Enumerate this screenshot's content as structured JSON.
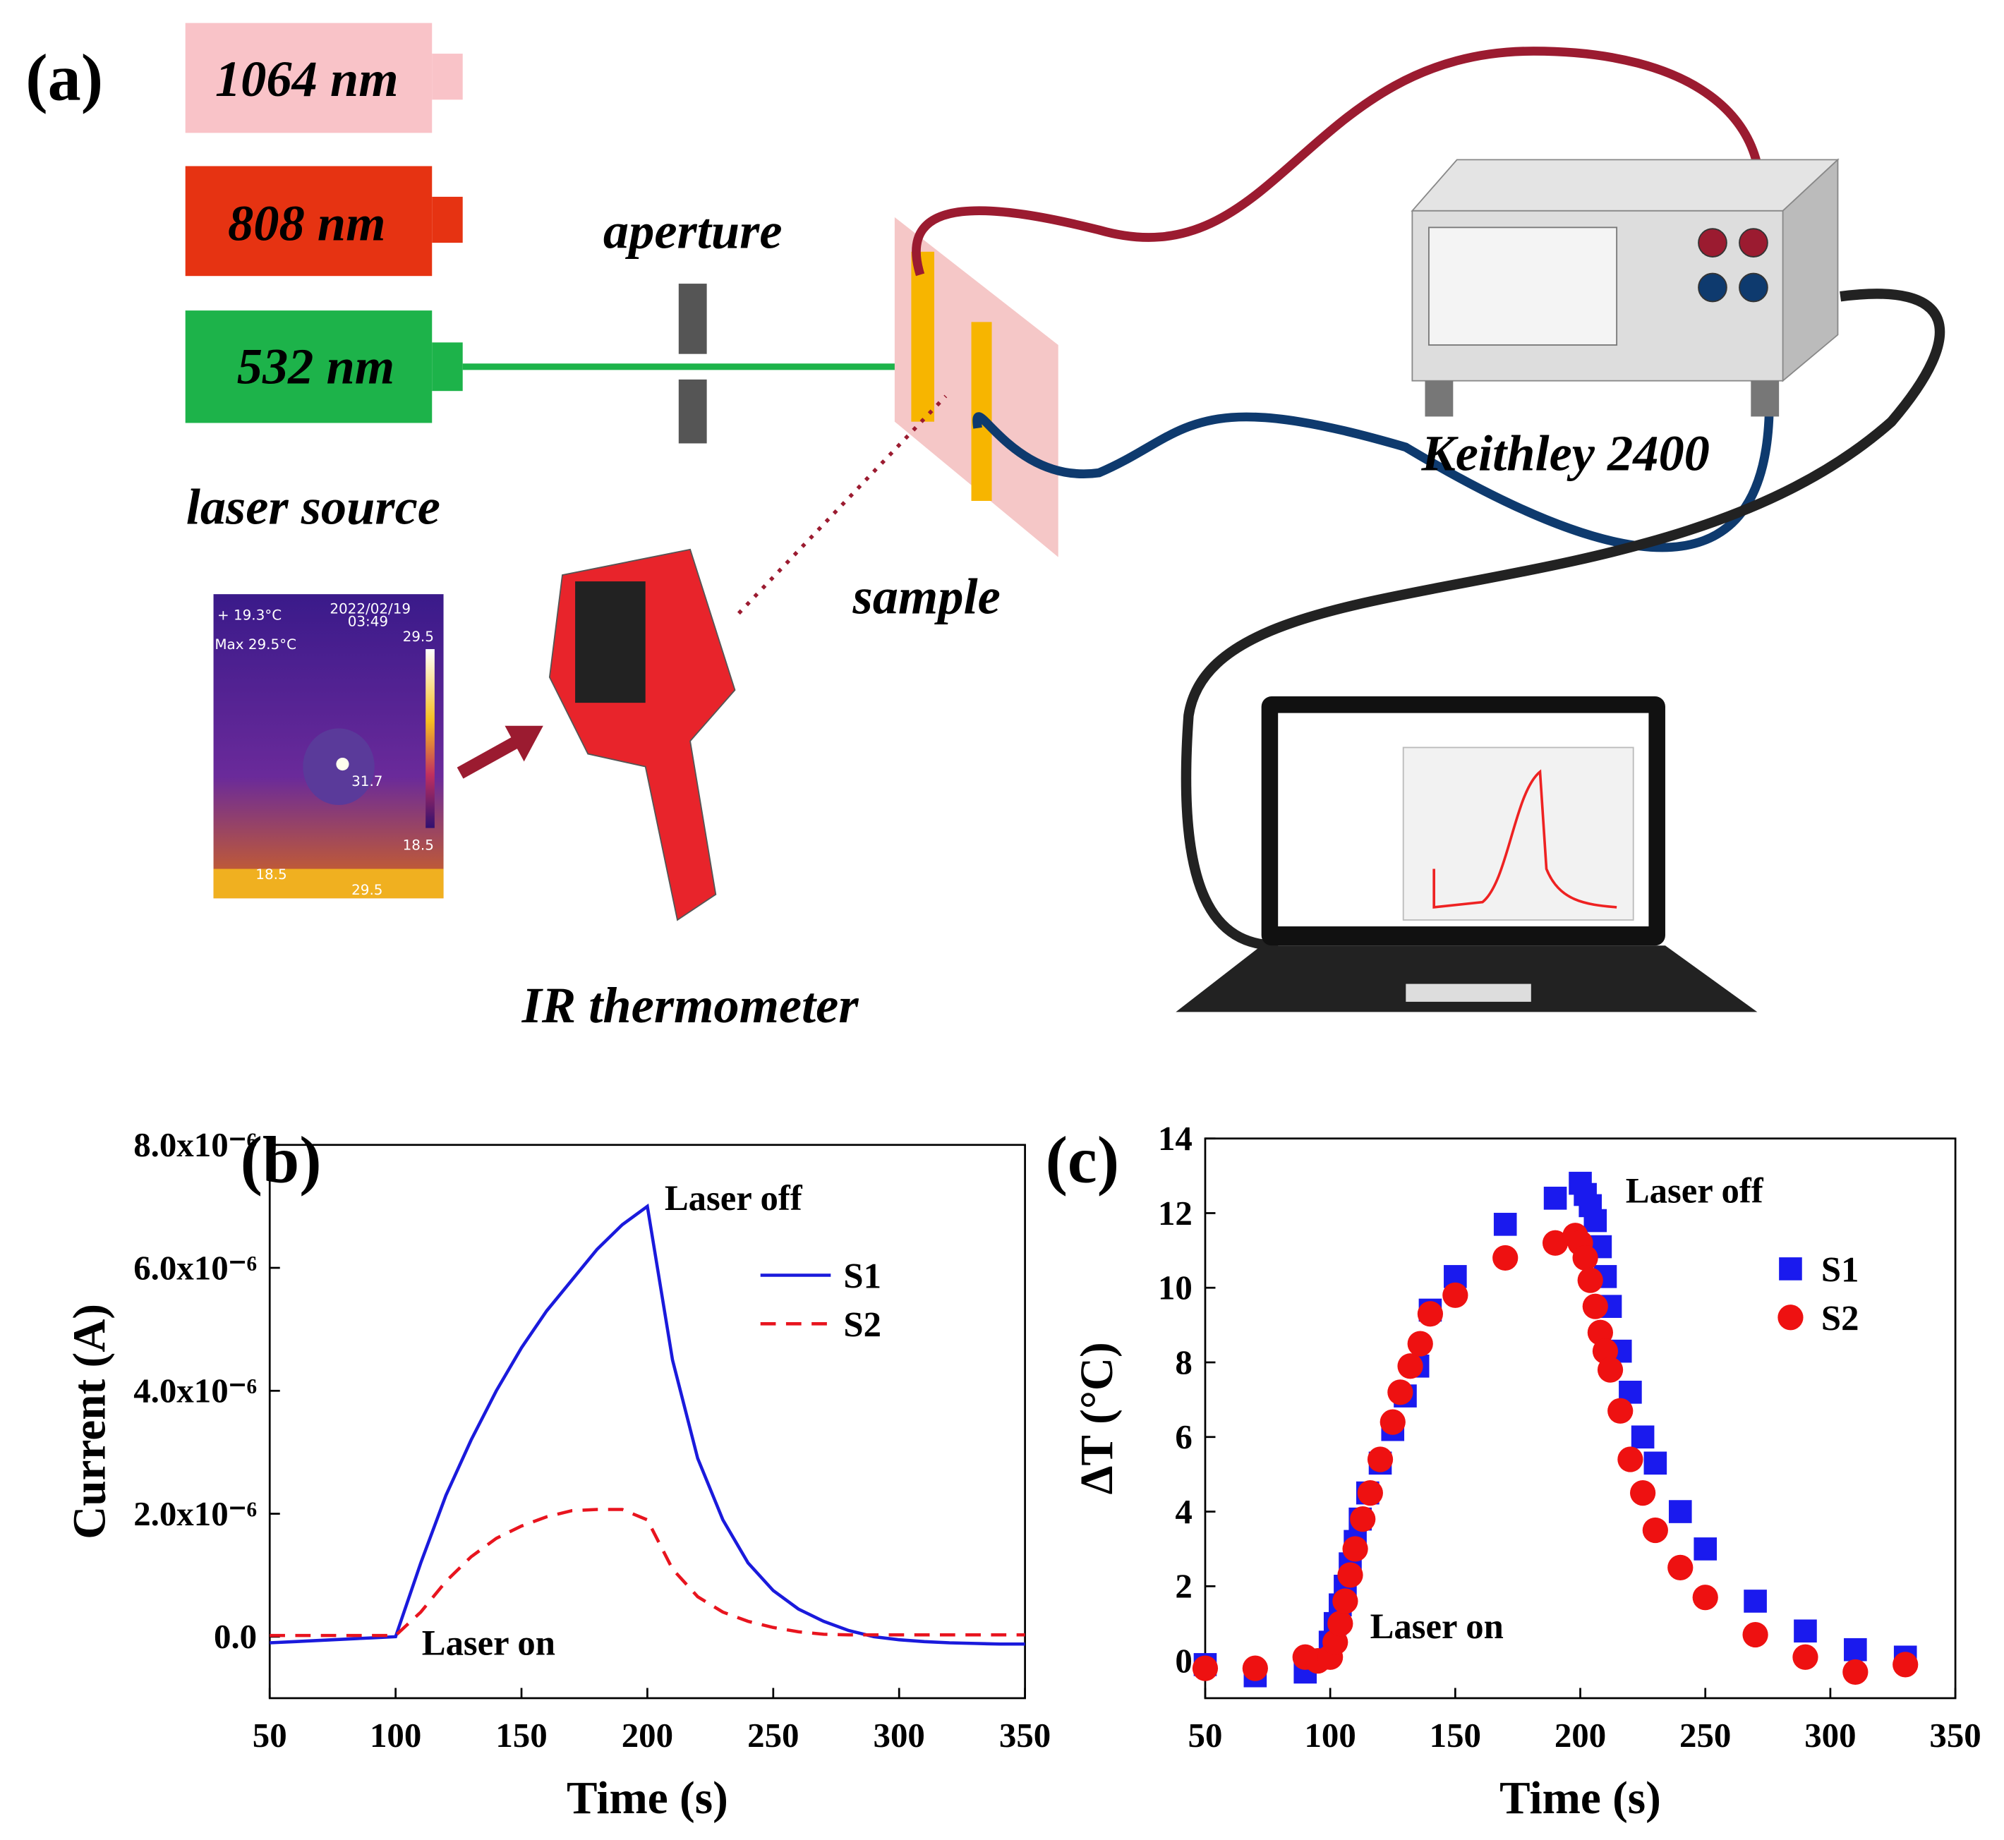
{
  "diagram": {
    "panel_label": "(a)",
    "lasers": [
      "1064 nm",
      "808 nm",
      "532 nm"
    ],
    "laser_source": "laser source",
    "aperture": "aperture",
    "sample": "sample",
    "instrument": "Keithley 2400",
    "thermometer": "IR thermometer",
    "thermal_image": {
      "spot": "+ 19.3°C",
      "date": "2022/02/19",
      "time": "03:49",
      "max": "Max 29.5°C",
      "scale_top": "29.5",
      "scale_bottom": "18.5",
      "hot_spot": "31.7",
      "min_marker": "18.5",
      "max_marker": "29.5"
    }
  },
  "chart_data": [
    {
      "type": "line",
      "panel_label": "(b)",
      "xlabel": "Time (s)",
      "ylabel": "Current (A)",
      "x": [
        50,
        60,
        70,
        80,
        90,
        100,
        110,
        120,
        130,
        140,
        150,
        160,
        170,
        180,
        190,
        200,
        210,
        220,
        230,
        240,
        250,
        260,
        270,
        280,
        290,
        300,
        310,
        320,
        330,
        340,
        350
      ],
      "series": [
        {
          "name": "S1",
          "color": "#1a1adc",
          "linestyle": "solid",
          "values": [
            -1e-07,
            -8e-08,
            -6e-08,
            -4e-08,
            -2e-08,
            0,
            1.2e-06,
            2.3e-06,
            3.2e-06,
            4e-06,
            4.7e-06,
            5.3e-06,
            5.8e-06,
            6.3e-06,
            6.7e-06,
            7e-06,
            4.5e-06,
            2.9e-06,
            1.9e-06,
            1.2e-06,
            7.5e-07,
            4.5e-07,
            2.5e-07,
            1e-07,
            0,
            -5e-08,
            -8e-08,
            -1e-07,
            -1.1e-07,
            -1.2e-07,
            -1.2e-07
          ]
        },
        {
          "name": "S2",
          "color": "#e8141e",
          "linestyle": "dashed",
          "values": [
            2e-08,
            2e-08,
            2e-08,
            2e-08,
            2e-08,
            2e-08,
            4e-07,
            9e-07,
            1.3e-06,
            1.6e-06,
            1.8e-06,
            1.95e-06,
            2.05e-06,
            2.07e-06,
            2.07e-06,
            1.9e-06,
            1.1e-06,
            6.5e-07,
            4e-07,
            2.5e-07,
            1.5e-07,
            8e-08,
            4e-08,
            3e-08,
            3e-08,
            3e-08,
            3e-08,
            3e-08,
            3e-08,
            3e-08,
            3e-08
          ]
        }
      ],
      "xlim": [
        50,
        350
      ],
      "xticks": [
        50,
        100,
        150,
        200,
        250,
        300,
        350
      ],
      "ylim": [
        -1e-06,
        8e-06
      ],
      "yticks": [
        {
          "value": 0,
          "label": "0.0"
        },
        {
          "value": 2e-06,
          "label": "2.0x10⁻⁶"
        },
        {
          "value": 4e-06,
          "label": "4.0x10⁻⁶"
        },
        {
          "value": 6e-06,
          "label": "6.0x10⁻⁶"
        },
        {
          "value": 8e-06,
          "label": "8.0x10⁻⁶"
        }
      ],
      "annotations": [
        "Laser off",
        "Laser on"
      ],
      "legend": "upper right"
    },
    {
      "type": "scatter",
      "panel_label": "(c)",
      "xlabel": "Time (s)",
      "ylabel": "ΔT (°C)",
      "series": [
        {
          "name": "S1",
          "color": "#1a1aee",
          "marker": "square",
          "x": [
            50,
            70,
            90,
            100,
            102,
            104,
            106,
            108,
            110,
            112,
            115,
            120,
            125,
            130,
            135,
            140,
            150,
            170,
            190,
            200,
            202,
            204,
            206,
            208,
            210,
            212,
            216,
            220,
            225,
            230,
            240,
            250,
            270,
            290,
            310,
            330
          ],
          "values": [
            -0.1,
            -0.4,
            -0.3,
            0.5,
            1,
            1.5,
            2,
            2.6,
            3.2,
            3.8,
            4.5,
            5.3,
            6.2,
            7.1,
            7.9,
            9.4,
            10.3,
            11.7,
            12.4,
            12.8,
            12.5,
            12.2,
            11.8,
            11.1,
            10.3,
            9.5,
            8.3,
            7.2,
            6.0,
            5.3,
            4.0,
            3.0,
            1.6,
            0.8,
            0.3,
            0.1
          ]
        },
        {
          "name": "S2",
          "color": "#ee1111",
          "marker": "circle",
          "x": [
            50,
            70,
            90,
            95,
            100,
            102,
            104,
            106,
            108,
            110,
            113,
            116,
            120,
            125,
            128,
            132,
            136,
            140,
            150,
            170,
            190,
            198,
            200,
            202,
            204,
            206,
            208,
            210,
            212,
            216,
            220,
            225,
            230,
            240,
            250,
            270,
            290,
            310,
            330
          ],
          "values": [
            -0.2,
            -0.2,
            0.1,
            0.0,
            0.1,
            0.5,
            1.0,
            1.6,
            2.3,
            3.0,
            3.8,
            4.5,
            5.4,
            6.4,
            7.2,
            7.9,
            8.5,
            9.3,
            9.8,
            10.8,
            11.2,
            11.4,
            11.2,
            10.8,
            10.2,
            9.5,
            8.8,
            8.3,
            7.8,
            6.7,
            5.4,
            4.5,
            3.5,
            2.5,
            1.7,
            0.7,
            0.1,
            -0.3,
            -0.1
          ]
        }
      ],
      "xlim": [
        50,
        350
      ],
      "xticks": [
        50,
        100,
        150,
        200,
        250,
        300,
        350
      ],
      "ylim": [
        -1,
        14
      ],
      "yticks": [
        0,
        2,
        4,
        6,
        8,
        10,
        12,
        14
      ],
      "annotations": [
        "Laser off",
        "Laser on"
      ],
      "legend": "upper right"
    }
  ]
}
